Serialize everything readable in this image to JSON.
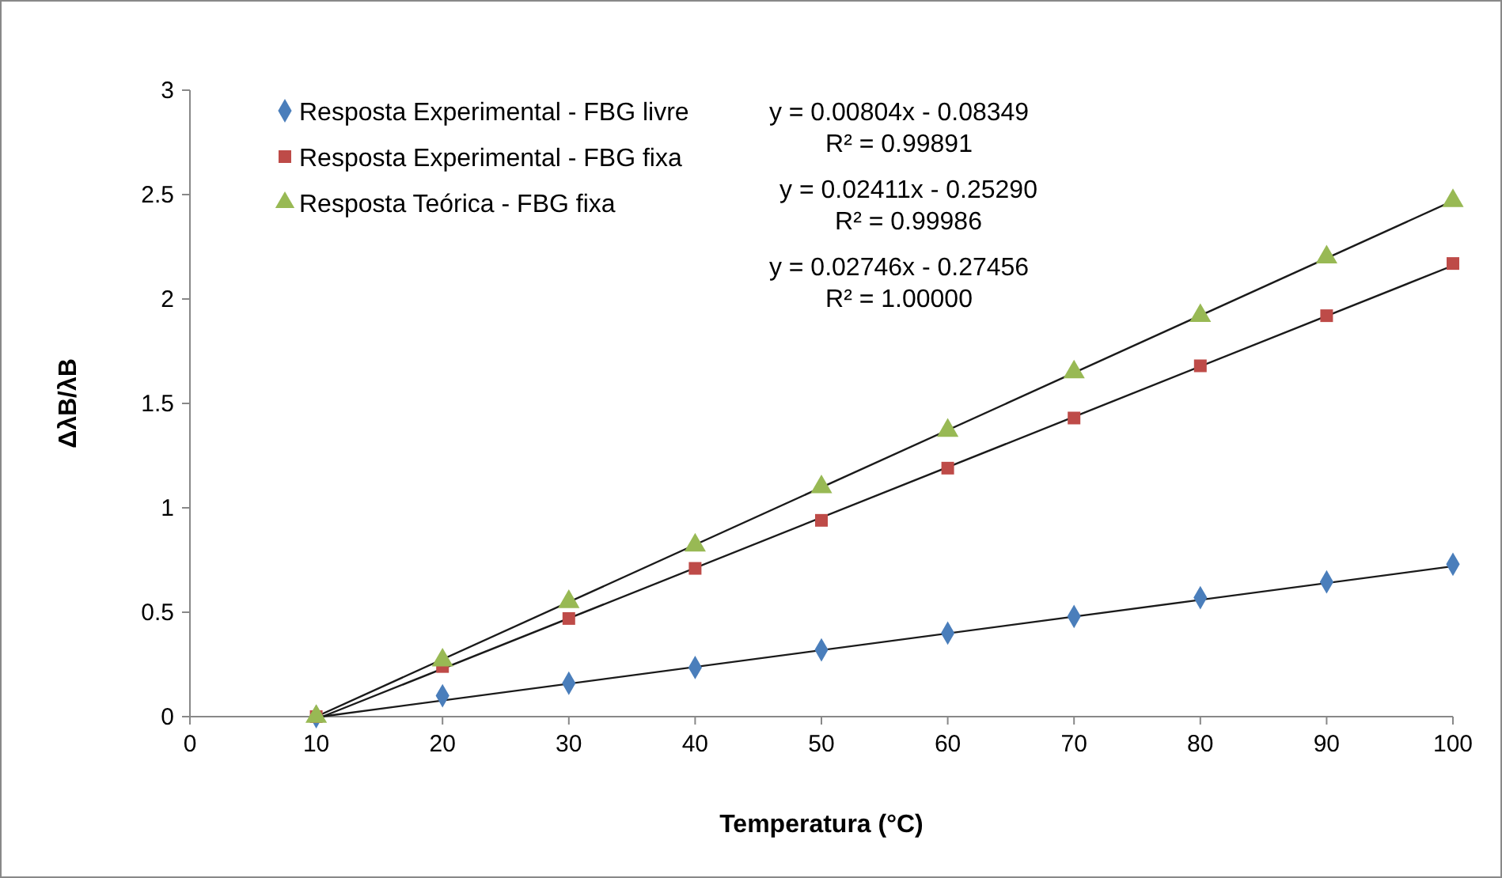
{
  "chart_data": {
    "type": "scatter",
    "xlabel": "Temperatura (°C)",
    "ylabel": "ΔλB/λB",
    "xlim": [
      0,
      100
    ],
    "xticks": [
      0,
      10,
      20,
      30,
      40,
      50,
      60,
      70,
      80,
      90,
      100
    ],
    "ylim": [
      0,
      3
    ],
    "yticks": [
      0,
      0.5,
      1,
      1.5,
      2,
      2.5,
      3
    ],
    "grid": false,
    "legend": "top left",
    "x": [
      10,
      20,
      30,
      40,
      50,
      60,
      70,
      80,
      90,
      100
    ],
    "series": [
      {
        "name": "Resposta Experimental - FBG livre",
        "color": "#4a7ebb",
        "marker": "diamond",
        "values": [
          0,
          0.1,
          0.16,
          0.235,
          0.32,
          0.4,
          0.48,
          0.57,
          0.645,
          0.73
        ]
      },
      {
        "name": "Resposta Experimental - FBG fixa",
        "color": "#be4b48",
        "marker": "square",
        "values": [
          0,
          0.24,
          0.47,
          0.71,
          0.94,
          1.19,
          1.43,
          1.68,
          1.92,
          2.17
        ]
      },
      {
        "name": "Resposta Teórica - FBG fixa",
        "color": "#98b954",
        "marker": "triangle",
        "values": [
          0,
          0.27,
          0.55,
          0.82,
          1.1,
          1.37,
          1.65,
          1.92,
          2.2,
          2.47
        ]
      },
      {
        "type": "line",
        "color": "#1a1a1a",
        "marker": "none",
        "x": [
          10.384,
          100
        ],
        "values": [
          0,
          0.72
        ]
      },
      {
        "type": "line",
        "color": "#1a1a1a",
        "marker": "none",
        "x": [
          10.489,
          100
        ],
        "values": [
          0,
          2.16
        ]
      },
      {
        "type": "line",
        "color": "#1a1a1a",
        "marker": "none",
        "x": [
          10,
          100
        ],
        "values": [
          0,
          2.47
        ]
      }
    ],
    "annotations": [
      "y = 0.00804x - 0.08349",
      "R² = 0.99891",
      "y = 0.02411x - 0.25290",
      "R² = 0.99986",
      "y = 0.02746x - 0.27456",
      "R² = 1.00000"
    ]
  }
}
